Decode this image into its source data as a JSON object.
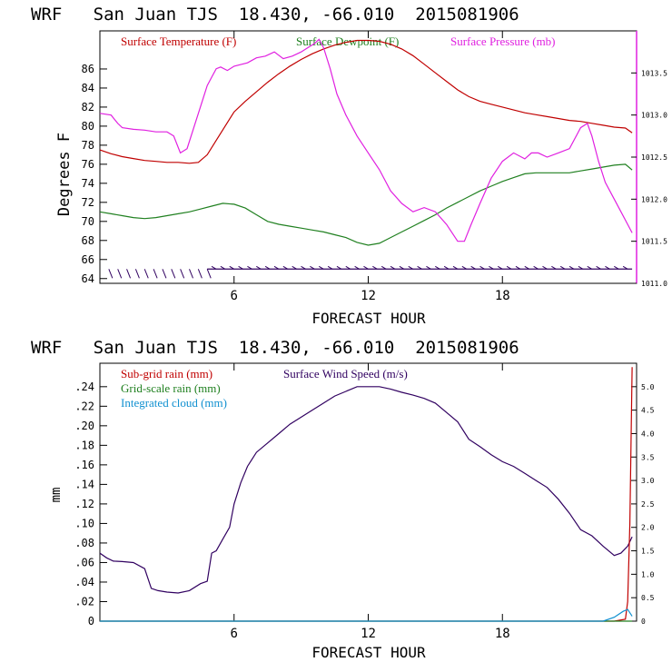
{
  "colors": {
    "temperature": "#c00000",
    "dewpoint": "#208020",
    "pressure": "#e020e0",
    "subgrid_rain": "#c00000",
    "gridscale_rain": "#208020",
    "cloud": "#1090d0",
    "wind_speed": "#300060",
    "axis": "#000000"
  },
  "chart_data": [
    {
      "type": "line",
      "title": "WRF   San Juan TJS  18.430, -66.010  2015081906",
      "xlabel": "FORECAST HOUR",
      "ylabel": "Degrees F",
      "xlim": [
        0,
        24
      ],
      "ylim": [
        63.5,
        90
      ],
      "x_ticks": [
        6,
        12,
        18
      ],
      "y_ticks": [
        64,
        66,
        68,
        70,
        72,
        74,
        76,
        78,
        80,
        82,
        84,
        86
      ],
      "y2lim": [
        1011.0,
        1014.0
      ],
      "y2_ticks": [
        "1011.0",
        "1011.5",
        "1012.0",
        "1012.5",
        "1013.0",
        "1013.5"
      ],
      "legend": [
        "Surface Temperature (F)",
        "Surface Dewpoint (F)",
        "Surface Pressure (mb)"
      ],
      "legend_position": "top",
      "series": [
        {
          "name": "Surface Temperature (F)",
          "axis": "left",
          "x": [
            0,
            0.5,
            1,
            1.5,
            2,
            2.5,
            3,
            3.5,
            4,
            4.4,
            4.8,
            5.2,
            5.6,
            6,
            6.5,
            7,
            7.5,
            8,
            8.5,
            9,
            9.5,
            10,
            10.5,
            11,
            11.5,
            12,
            12.5,
            13,
            13.5,
            14,
            14.5,
            15,
            15.5,
            16,
            16.5,
            17,
            17.5,
            18,
            18.5,
            19,
            19.5,
            20,
            20.5,
            21,
            21.5,
            22,
            22.5,
            23,
            23.5,
            23.8
          ],
          "values": [
            77.5,
            77.1,
            76.8,
            76.6,
            76.4,
            76.3,
            76.2,
            76.2,
            76.1,
            76.2,
            77.0,
            78.5,
            80.0,
            81.5,
            82.6,
            83.6,
            84.6,
            85.5,
            86.3,
            87.0,
            87.6,
            88.1,
            88.5,
            88.8,
            89.0,
            89.0,
            88.9,
            88.6,
            88.1,
            87.4,
            86.5,
            85.6,
            84.7,
            83.8,
            83.1,
            82.6,
            82.3,
            82.0,
            81.7,
            81.4,
            81.2,
            81.0,
            80.8,
            80.6,
            80.5,
            80.3,
            80.1,
            79.9,
            79.8,
            79.3
          ]
        },
        {
          "name": "Surface Dewpoint (F)",
          "axis": "left",
          "x": [
            0,
            0.5,
            1,
            1.5,
            2,
            2.5,
            3,
            3.5,
            4,
            4.5,
            5,
            5.5,
            6,
            6.5,
            7,
            7.5,
            8,
            8.5,
            9,
            9.5,
            10,
            10.5,
            11,
            11.5,
            12,
            12.5,
            13,
            13.5,
            14,
            14.5,
            15,
            15.5,
            16,
            16.5,
            17,
            17.5,
            18,
            18.5,
            19,
            19.5,
            20,
            20.5,
            21,
            21.5,
            22,
            22.5,
            23,
            23.5,
            23.8
          ],
          "values": [
            71.0,
            70.8,
            70.6,
            70.4,
            70.3,
            70.4,
            70.6,
            70.8,
            71.0,
            71.3,
            71.6,
            71.9,
            71.8,
            71.4,
            70.7,
            70.0,
            69.7,
            69.5,
            69.3,
            69.1,
            68.9,
            68.6,
            68.3,
            67.8,
            67.5,
            67.7,
            68.3,
            68.9,
            69.5,
            70.1,
            70.7,
            71.4,
            72.0,
            72.6,
            73.2,
            73.7,
            74.2,
            74.6,
            75.0,
            75.1,
            75.1,
            75.1,
            75.1,
            75.3,
            75.5,
            75.7,
            75.9,
            76.0,
            75.4
          ]
        },
        {
          "name": "Surface Pressure (mb)",
          "axis": "right",
          "x": [
            0,
            0.5,
            0.8,
            1,
            1.5,
            2,
            2.5,
            3,
            3.3,
            3.6,
            3.9,
            4.2,
            4.5,
            4.8,
            5,
            5.2,
            5.4,
            5.7,
            6,
            6.3,
            6.6,
            7,
            7.4,
            7.8,
            8.2,
            8.6,
            9,
            9.3,
            9.6,
            9.8,
            10,
            10.3,
            10.6,
            11,
            11.5,
            12,
            12.5,
            13,
            13.5,
            14,
            14.5,
            15,
            15.5,
            16,
            16.3,
            16.6,
            17,
            17.5,
            18,
            18.5,
            19,
            19.3,
            19.6,
            20,
            20.5,
            21,
            21.5,
            21.8,
            22,
            22.3,
            22.6,
            23,
            23.3,
            23.6,
            23.8
          ],
          "values": [
            1013.02,
            1013.0,
            1012.9,
            1012.85,
            1012.83,
            1012.82,
            1012.8,
            1012.8,
            1012.75,
            1012.55,
            1012.6,
            1012.85,
            1013.1,
            1013.35,
            1013.45,
            1013.55,
            1013.57,
            1013.53,
            1013.58,
            1013.6,
            1013.62,
            1013.68,
            1013.7,
            1013.75,
            1013.67,
            1013.7,
            1013.75,
            1013.8,
            1013.85,
            1013.9,
            1013.8,
            1013.55,
            1013.25,
            1013.0,
            1012.75,
            1012.55,
            1012.35,
            1012.1,
            1011.95,
            1011.85,
            1011.9,
            1011.85,
            1011.7,
            1011.5,
            1011.5,
            1011.7,
            1011.95,
            1012.25,
            1012.45,
            1012.55,
            1012.48,
            1012.55,
            1012.55,
            1012.5,
            1012.55,
            1012.6,
            1012.85,
            1012.9,
            1012.75,
            1012.45,
            1012.2,
            1012.0,
            1011.85,
            1011.7,
            1011.6
          ]
        }
      ],
      "wind_barbs": {
        "y_level": 65,
        "x": [
          0.4,
          0.8,
          1.2,
          1.6,
          2.0,
          2.4,
          2.8,
          3.2,
          3.6,
          4.0,
          4.4,
          4.8,
          5.2,
          5.6,
          6.0,
          6.4,
          6.8,
          7.2,
          7.6,
          8.0,
          8.4,
          8.8,
          9.2,
          9.6,
          10.0,
          10.4,
          10.8,
          11.2,
          11.6,
          12.0,
          12.4,
          12.8,
          13.2,
          13.6,
          14.0,
          14.4,
          14.8,
          15.2,
          15.6,
          16.0,
          16.4,
          16.8,
          17.2,
          17.6,
          18.0,
          18.4,
          18.8,
          19.2,
          19.6,
          20.0,
          20.4,
          20.8,
          21.2,
          21.6,
          22.0,
          22.4,
          22.8,
          23.2,
          23.6
        ]
      }
    },
    {
      "type": "line",
      "title": "WRF   San Juan TJS  18.430, -66.010  2015081906",
      "xlabel": "FORECAST HOUR",
      "ylabel": "mm",
      "xlim": [
        0,
        24
      ],
      "ylim": [
        0,
        0.264
      ],
      "x_ticks": [
        6,
        12,
        18
      ],
      "y_ticks": [
        "0",
        ".02",
        ".04",
        ".06",
        ".08",
        ".10",
        ".12",
        ".14",
        ".16",
        ".18",
        ".20",
        ".22",
        ".24"
      ],
      "y2lim": [
        0,
        5.5
      ],
      "y2_ticks": [
        "0",
        "0.5",
        "1.0",
        "1.5",
        "2.0",
        "2.5",
        "3.0",
        "3.5",
        "4.0",
        "4.5",
        "5.0"
      ],
      "legend": [
        "Sub-grid rain (mm)",
        "Grid-scale rain (mm)",
        "Integrated cloud (mm)",
        "Surface Wind Speed (m/s)"
      ],
      "legend_position": "top-left",
      "series": [
        {
          "name": "Surface Wind Speed (m/s)",
          "axis": "right",
          "x": [
            0,
            0.3,
            0.6,
            1,
            1.5,
            2,
            2.3,
            2.6,
            3,
            3.5,
            4,
            4.5,
            4.8,
            5,
            5.2,
            5.5,
            5.8,
            6,
            6.3,
            6.6,
            7,
            7.5,
            8,
            8.5,
            9,
            9.5,
            10,
            10.5,
            11,
            11.5,
            12,
            12.5,
            13,
            13.5,
            14,
            14.5,
            15,
            15.5,
            16,
            16.5,
            17,
            17.5,
            18,
            18.5,
            19,
            19.5,
            20,
            20.5,
            21,
            21.5,
            22,
            22.5,
            23,
            23.3,
            23.6,
            23.8
          ],
          "values": [
            1.45,
            1.35,
            1.28,
            1.27,
            1.25,
            1.12,
            0.7,
            0.65,
            0.62,
            0.6,
            0.65,
            0.8,
            0.85,
            1.45,
            1.5,
            1.75,
            2.0,
            2.5,
            2.95,
            3.3,
            3.6,
            3.8,
            4.0,
            4.2,
            4.35,
            4.5,
            4.65,
            4.8,
            4.9,
            5.0,
            5.0,
            5.0,
            4.95,
            4.88,
            4.82,
            4.75,
            4.65,
            4.45,
            4.25,
            3.88,
            3.72,
            3.55,
            3.4,
            3.3,
            3.15,
            3.0,
            2.85,
            2.6,
            2.3,
            1.95,
            1.82,
            1.6,
            1.4,
            1.45,
            1.6,
            1.8
          ]
        },
        {
          "name": "Sub-grid rain (mm)",
          "axis": "left",
          "x": [
            0,
            23.0,
            23.5,
            23.6,
            23.7,
            23.8
          ],
          "values": [
            0,
            0,
            0.002,
            0.02,
            0.1,
            0.26
          ]
        },
        {
          "name": "Grid-scale rain (mm)",
          "axis": "left",
          "x": [
            0,
            23.8
          ],
          "values": [
            0,
            0
          ]
        },
        {
          "name": "Integrated cloud (mm)",
          "axis": "left",
          "x": [
            0,
            22.5,
            23.0,
            23.4,
            23.6,
            23.8
          ],
          "values": [
            0,
            0,
            0.004,
            0.01,
            0.012,
            0.005
          ]
        }
      ]
    }
  ]
}
